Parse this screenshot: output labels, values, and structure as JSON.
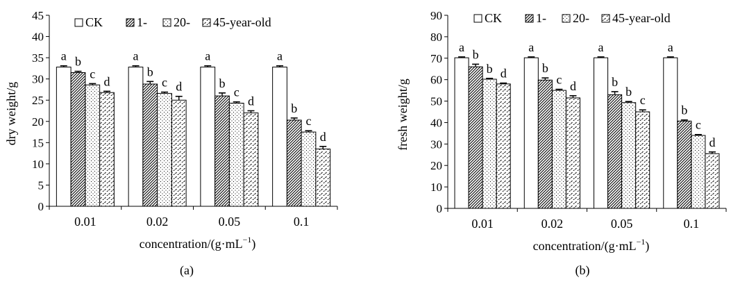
{
  "chart_data": [
    {
      "type": "bar",
      "panel_label": "(a)",
      "xlabel": "concentration/(g·mL",
      "xlabel_sup": "−1",
      "xlabel_close": ")",
      "ylabel": "dry weight/g",
      "ylim": [
        0,
        45
      ],
      "yticks": [
        "0",
        "5",
        "10",
        "15",
        "20",
        "25",
        "30",
        "35",
        "40",
        "45"
      ],
      "categories": [
        "0.01",
        "0.02",
        "0.05",
        "0.1"
      ],
      "legend": [
        "CK",
        "1-",
        "20-",
        "45-year-old"
      ],
      "series": [
        {
          "name": "CK",
          "values": [
            32.8,
            32.8,
            32.8,
            32.8
          ],
          "errors": [
            0.3,
            0.3,
            0.3,
            0.3
          ],
          "letters": [
            "a",
            "a",
            "a",
            "a"
          ]
        },
        {
          "name": "1-",
          "values": [
            31.5,
            28.8,
            26.0,
            20.3
          ],
          "errors": [
            0.3,
            0.6,
            0.7,
            0.5
          ],
          "letters": [
            "b",
            "b",
            "b",
            "b"
          ]
        },
        {
          "name": "20-",
          "values": [
            28.6,
            26.6,
            24.3,
            17.5
          ],
          "errors": [
            0.3,
            0.3,
            0.3,
            0.3
          ],
          "letters": [
            "c",
            "c",
            "c",
            "c"
          ]
        },
        {
          "name": "45-year-old",
          "values": [
            26.8,
            25.0,
            22.0,
            13.5
          ],
          "errors": [
            0.3,
            0.9,
            0.5,
            0.6
          ],
          "letters": [
            "d",
            "d",
            "d",
            "d"
          ]
        }
      ]
    },
    {
      "type": "bar",
      "panel_label": "(b)",
      "xlabel": "concentration/(g·mL",
      "xlabel_sup": "−1",
      "xlabel_close": ")",
      "ylabel": "fresh weight/g",
      "ylim": [
        0,
        90
      ],
      "yticks": [
        "0",
        "10",
        "20",
        "30",
        "40",
        "50",
        "60",
        "70",
        "80",
        "90"
      ],
      "categories": [
        "0.01",
        "0.02",
        "0.05",
        "0.1"
      ],
      "legend": [
        "CK",
        "1-",
        "20-",
        "45-year-old"
      ],
      "series": [
        {
          "name": "CK",
          "values": [
            70.2,
            70.2,
            70.2,
            70.2
          ],
          "errors": [
            0.4,
            0.4,
            0.4,
            0.4
          ],
          "letters": [
            "a",
            "a",
            "a",
            "a"
          ]
        },
        {
          "name": "1-",
          "values": [
            66.0,
            59.8,
            53.0,
            40.7
          ],
          "errors": [
            1.2,
            1.0,
            1.4,
            0.5
          ],
          "letters": [
            "b",
            "b",
            "b",
            "b"
          ]
        },
        {
          "name": "20-",
          "values": [
            60.2,
            55.0,
            49.3,
            34.0
          ],
          "errors": [
            0.4,
            0.5,
            0.5,
            0.4
          ],
          "letters": [
            "b",
            "c",
            "b",
            "c"
          ]
        },
        {
          "name": "45-year-old",
          "values": [
            58.0,
            51.5,
            45.0,
            25.5
          ],
          "errors": [
            0.4,
            1.0,
            0.9,
            0.8
          ],
          "letters": [
            "d",
            "d",
            "c",
            "d"
          ]
        }
      ]
    }
  ]
}
